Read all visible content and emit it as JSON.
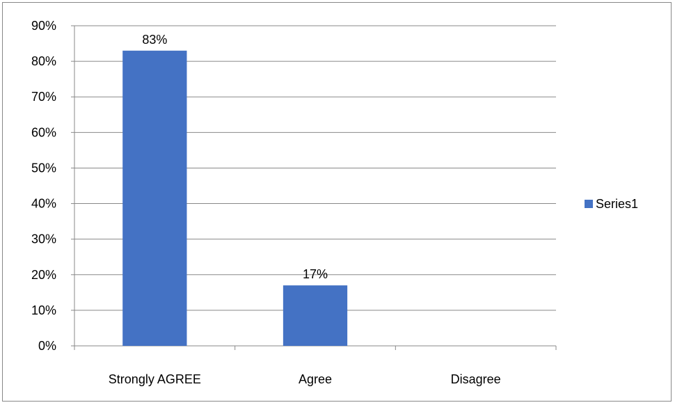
{
  "chart_data": {
    "type": "bar",
    "title": "",
    "xlabel": "",
    "ylabel": "",
    "categories": [
      "Strongly AGREE",
      "Agree",
      "Disagree"
    ],
    "series": [
      {
        "name": "Series1",
        "values": [
          83,
          17,
          0
        ],
        "data_labels": [
          "83%",
          "17%",
          ""
        ],
        "color": "#4472C4"
      }
    ],
    "ylim": [
      0,
      90
    ],
    "y_ticks": [
      0,
      10,
      20,
      30,
      40,
      50,
      60,
      70,
      80,
      90
    ],
    "y_tick_labels": [
      "0%",
      "10%",
      "20%",
      "30%",
      "40%",
      "50%",
      "60%",
      "70%",
      "80%",
      "90%"
    ],
    "grid": true,
    "legend": {
      "position": "right",
      "entries": [
        "Series1"
      ]
    }
  }
}
